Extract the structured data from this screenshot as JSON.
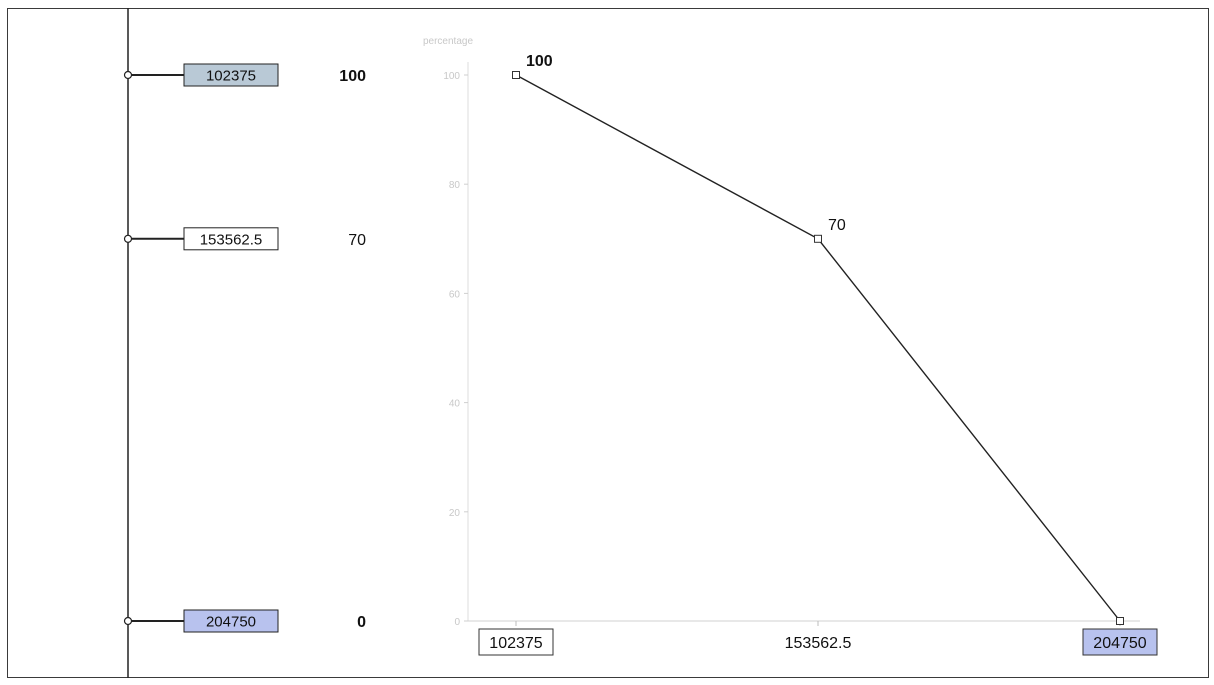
{
  "chart_data": {
    "type": "line",
    "title": "",
    "xlabel": "",
    "ylabel": "percentage",
    "x": [
      102375,
      153562.5,
      204750
    ],
    "x_tick_labels": [
      "102375",
      "153562.5",
      "204750"
    ],
    "series": [
      {
        "values": [
          100,
          70,
          0
        ]
      }
    ],
    "point_labels": [
      "100",
      "70",
      ""
    ],
    "ylim": [
      0,
      100
    ],
    "y_ticks": [
      0,
      20,
      40,
      60,
      80,
      100
    ],
    "y_tick_labels": [
      "0",
      "20",
      "40",
      "60",
      "80",
      "100"
    ],
    "grid": false,
    "line_color": "#222222"
  },
  "scale": {
    "items": [
      {
        "label": "102375",
        "value": 100,
        "value_label": "100",
        "box_fill": "#b9c9d6"
      },
      {
        "label": "153562.5",
        "value": 70,
        "value_label": "70",
        "box_fill": "#ffffff"
      },
      {
        "label": "204750",
        "value": 0,
        "value_label": "0",
        "box_fill": "#b8c2ee"
      }
    ]
  },
  "x_box_fills": [
    "#ffffff",
    "#ffffff",
    "#b8c2ee"
  ]
}
